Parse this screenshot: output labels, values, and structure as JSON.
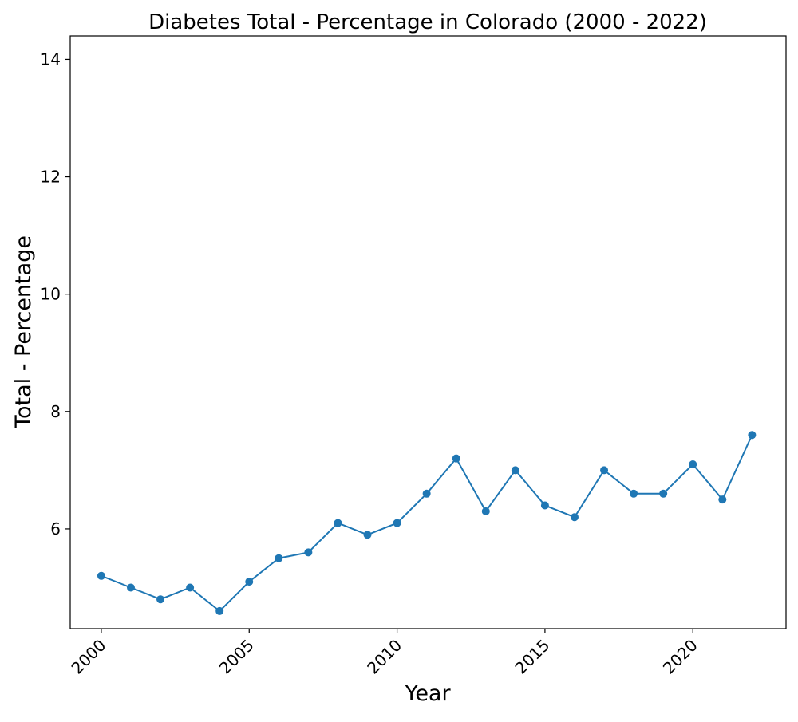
{
  "chart_data": {
    "type": "line",
    "title": "Diabetes Total - Percentage in Colorado (2000 - 2022)",
    "xlabel": "Year",
    "ylabel": "Total - Percentage",
    "xlim": [
      1998.95,
      2023.15
    ],
    "ylim": [
      4.3,
      14.4
    ],
    "x_ticks": [
      2000,
      2005,
      2010,
      2015,
      2020
    ],
    "y_ticks": [
      6,
      8,
      10,
      12,
      14
    ],
    "x_tick_rotation_deg": 45,
    "grid": false,
    "legend": "none",
    "series": [
      {
        "color": "#1f77b4",
        "marker": "circle",
        "x": [
          2000,
          2001,
          2002,
          2003,
          2004,
          2005,
          2006,
          2007,
          2008,
          2009,
          2010,
          2011,
          2012,
          2013,
          2014,
          2015,
          2016,
          2017,
          2018,
          2019,
          2020,
          2021,
          2022
        ],
        "y": [
          5.2,
          5.0,
          4.8,
          5.0,
          4.6,
          5.1,
          5.5,
          5.6,
          6.1,
          5.9,
          6.1,
          6.6,
          7.2,
          6.3,
          7.0,
          6.4,
          6.2,
          7.0,
          6.6,
          6.6,
          7.1,
          6.5,
          7.6
        ]
      }
    ]
  }
}
